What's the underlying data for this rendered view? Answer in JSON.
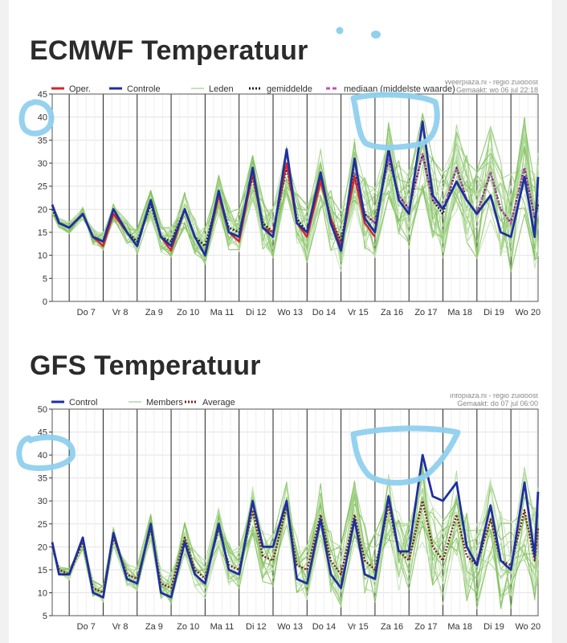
{
  "page": {
    "background": "#f1f1f1",
    "card": "#ffffff"
  },
  "charts": [
    {
      "id": "ec",
      "title": "ECMWF Temperatuur",
      "source": "Weerplaza.nl - regio zuidoost",
      "made": "Gemaakt: wo 06 jul 22:18",
      "ylim": [
        0,
        45
      ],
      "yticks": [
        "0",
        "5",
        "10",
        "15",
        "20",
        "25",
        "30",
        "35",
        "40",
        "45"
      ],
      "xticks": [
        "Do 7",
        "Vr 8",
        "Za 9",
        "Zo 10",
        "Ma 11",
        "Di 12",
        "Wo 13",
        "Do 14",
        "Vr 15",
        "Za 16",
        "Zo 17",
        "Ma 18",
        "Di 19",
        "Wo 20"
      ],
      "legend": [
        {
          "label": "Oper.",
          "color": "#d8262a",
          "style": "solid"
        },
        {
          "label": "Controle",
          "color": "#1f2fa0",
          "style": "solid"
        },
        {
          "label": "Leden",
          "color": "#b6d6a8",
          "style": "solid"
        },
        {
          "label": "gemiddelde",
          "color": "#222222",
          "style": "dotted"
        },
        {
          "label": "mediaan (middelste waarde)",
          "color": "#c050c0",
          "style": "dashed"
        }
      ]
    },
    {
      "id": "gfs",
      "title": "GFS Temperatuur",
      "source": "Infoplaza.nl - regio zuidoost",
      "made": "Gemaakt: do 07 jul 06:00",
      "ylim": [
        5,
        50
      ],
      "yticks": [
        "5",
        "10",
        "15",
        "20",
        "25",
        "30",
        "35",
        "40",
        "45",
        "50"
      ],
      "xticks": [
        "Do 7",
        "Vr 8",
        "Za 9",
        "Zo 10",
        "Ma 11",
        "Di 12",
        "Wo 13",
        "Do 14",
        "Vr 15",
        "Za 16",
        "Zo 17",
        "Ma 18",
        "Di 19",
        "Wo 20"
      ],
      "legend": [
        {
          "label": "Control",
          "color": "#1f2fa0",
          "style": "solid"
        },
        {
          "label": "Members",
          "color": "#b6d6a8",
          "style": "solid"
        },
        {
          "label": "Average",
          "color": "#7a2020",
          "style": "dotted"
        }
      ]
    }
  ],
  "chart_data": [
    {
      "type": "line",
      "title": "ECMWF Temperatuur",
      "ylim": [
        0,
        45
      ],
      "grid": true,
      "legend_position": "top",
      "x_start_day": 6.5,
      "x_end_day": 20.8,
      "series": [
        {
          "name": "Oper.",
          "color": "#d8262a",
          "x": [
            6.5,
            6.7,
            7.0,
            7.4,
            7.7,
            8.0,
            8.3,
            8.7,
            9.0,
            9.4,
            9.7,
            10.0,
            10.4,
            10.7,
            11.0,
            11.4,
            11.7,
            12.0,
            12.4,
            12.7,
            13.0,
            13.4,
            13.7,
            14.0,
            14.4,
            14.7,
            15.0,
            15.4,
            15.7,
            16.0
          ],
          "y": [
            21,
            17,
            16,
            19,
            14,
            12,
            19,
            15,
            12,
            22,
            14,
            11,
            20,
            14,
            10,
            23,
            15,
            13,
            28,
            16,
            15,
            30,
            17,
            14,
            26,
            18,
            12,
            27,
            17,
            14
          ]
        },
        {
          "name": "Controle",
          "color": "#1f2fa0",
          "x": [
            6.5,
            6.7,
            7.0,
            7.4,
            7.7,
            8.0,
            8.3,
            8.7,
            9.0,
            9.4,
            9.7,
            10.0,
            10.4,
            10.7,
            11.0,
            11.4,
            11.7,
            12.0,
            12.4,
            12.7,
            13.0,
            13.4,
            13.7,
            14.0,
            14.4,
            14.7,
            15.0,
            15.4,
            15.7,
            16.0,
            16.4,
            16.7,
            17.0,
            17.4,
            17.7,
            18.0,
            18.4,
            18.7,
            19.0,
            19.4,
            19.7,
            20.0,
            20.4,
            20.7,
            20.8
          ],
          "y": [
            21,
            17,
            16,
            19,
            14,
            13,
            20,
            15,
            12,
            22,
            14,
            12,
            20,
            14,
            10,
            24,
            15,
            14,
            29,
            16,
            14,
            33,
            17,
            15,
            28,
            17,
            11,
            31,
            18,
            15,
            33,
            22,
            19,
            39,
            23,
            20,
            26,
            22,
            19,
            23,
            15,
            14,
            27,
            14,
            27
          ]
        },
        {
          "name": "gemiddelde",
          "color": "#222222",
          "x": [
            6.5,
            6.7,
            7.0,
            7.4,
            7.7,
            8.0,
            8.3,
            8.7,
            9.0,
            9.4,
            9.7,
            10.0,
            10.4,
            10.7,
            11.0,
            11.4,
            11.7,
            12.0,
            12.4,
            12.7,
            13.0,
            13.4,
            13.7,
            14.0,
            14.4,
            14.7,
            15.0,
            15.4,
            15.7,
            16.0,
            16.4,
            16.7,
            17.0,
            17.4,
            17.7,
            18.0,
            18.4,
            18.7,
            19.0,
            19.4,
            19.7,
            20.0,
            20.4,
            20.7,
            20.8
          ],
          "y": [
            20,
            17,
            16,
            19,
            14,
            13,
            19,
            15,
            13,
            21,
            14,
            13,
            20,
            14,
            12,
            23,
            16,
            15,
            27,
            17,
            15,
            29,
            18,
            15,
            27,
            18,
            13,
            28,
            19,
            17,
            31,
            23,
            20,
            32,
            22,
            19,
            29,
            22,
            19,
            28,
            20,
            17,
            29,
            18,
            21
          ]
        },
        {
          "name": "mediaan (middelste waarde)",
          "color": "#c050c0",
          "x": [
            15.4,
            15.7,
            16.0,
            16.4,
            16.7,
            17.0,
            17.4,
            17.7,
            18.0,
            18.4,
            18.7,
            19.0,
            19.4,
            19.7,
            20.0,
            20.4,
            20.7
          ],
          "y": [
            28,
            19,
            17,
            31,
            23,
            20,
            32,
            22,
            20,
            29,
            22,
            19,
            28,
            20,
            17,
            29,
            18
          ]
        }
      ]
    },
    {
      "type": "line",
      "title": "GFS Temperatuur",
      "ylim": [
        5,
        50
      ],
      "grid": true,
      "legend_position": "top",
      "x_start_day": 6.5,
      "x_end_day": 20.8,
      "series": [
        {
          "name": "Control",
          "color": "#1f2fa0",
          "x": [
            6.5,
            6.7,
            7.0,
            7.4,
            7.7,
            8.0,
            8.3,
            8.7,
            9.0,
            9.4,
            9.7,
            10.0,
            10.4,
            10.7,
            11.0,
            11.4,
            11.7,
            12.0,
            12.4,
            12.7,
            13.0,
            13.4,
            13.7,
            14.0,
            14.4,
            14.7,
            15.0,
            15.4,
            15.7,
            16.0,
            16.4,
            16.7,
            17.0,
            17.4,
            17.7,
            18.0,
            18.4,
            18.7,
            19.0,
            19.4,
            19.7,
            20.0,
            20.4,
            20.7,
            20.8
          ],
          "y": [
            21,
            14,
            14,
            22,
            10,
            9,
            23,
            13,
            12,
            25,
            10,
            9,
            21,
            14,
            12,
            25,
            15,
            14,
            30,
            20,
            20,
            30,
            13,
            12,
            26,
            14,
            11,
            26,
            14,
            13,
            31,
            19,
            19,
            40,
            31,
            30,
            34,
            20,
            16,
            29,
            17,
            15,
            34,
            18,
            32
          ]
        },
        {
          "name": "Average",
          "color": "#7a2020",
          "x": [
            6.5,
            6.7,
            7.0,
            7.4,
            7.7,
            8.0,
            8.3,
            8.7,
            9.0,
            9.4,
            9.7,
            10.0,
            10.4,
            10.7,
            11.0,
            11.4,
            11.7,
            12.0,
            12.4,
            12.7,
            13.0,
            13.4,
            13.7,
            14.0,
            14.4,
            14.7,
            15.0,
            15.4,
            15.7,
            16.0,
            16.4,
            16.7,
            17.0,
            17.4,
            17.7,
            18.0,
            18.4,
            18.7,
            19.0,
            19.4,
            19.7,
            20.0,
            20.4,
            20.7,
            20.8
          ],
          "y": [
            20,
            15,
            14,
            21,
            11,
            10,
            22,
            14,
            13,
            24,
            12,
            11,
            22,
            15,
            13,
            24,
            16,
            15,
            28,
            18,
            17,
            29,
            16,
            15,
            27,
            17,
            14,
            27,
            17,
            15,
            29,
            19,
            17,
            30,
            20,
            17,
            27,
            18,
            16,
            26,
            17,
            16,
            28,
            17,
            24
          ]
        }
      ]
    }
  ]
}
